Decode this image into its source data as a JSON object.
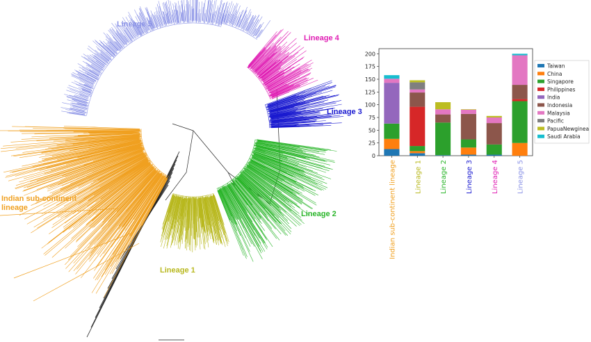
{
  "tree": {
    "lineages": [
      {
        "key": "l5",
        "name": "Lineage 5",
        "color": "#8b93e6"
      },
      {
        "key": "l4",
        "name": "Lineage 4",
        "color": "#e01fb4"
      },
      {
        "key": "l3",
        "name": "Lineage 3",
        "color": "#1a1ad0"
      },
      {
        "key": "l2",
        "name": "Lineage 2",
        "color": "#2ab52a"
      },
      {
        "key": "l1",
        "name": "Lineage 1",
        "color": "#b8b81e"
      },
      {
        "key": "isc",
        "name": "Indian sub-continent lineage",
        "color": "#f0a020"
      }
    ],
    "isc_label_line1": "Indian sub-continent",
    "isc_label_line2": "lineage"
  },
  "chart_data": {
    "type": "bar",
    "stacked": true,
    "categories": [
      "Indian sub-continent lineage",
      "Lineage 1",
      "Lineage 2",
      "Lineage 3",
      "Lineage 4",
      "Lineage 5"
    ],
    "category_colors": [
      "#f0a020",
      "#b8b81e",
      "#2ab52a",
      "#1a1ad0",
      "#e01fb4",
      "#8b93e6"
    ],
    "ylim": [
      0,
      210
    ],
    "yticks": [
      0,
      25,
      50,
      75,
      100,
      125,
      150,
      175,
      200
    ],
    "legend_position": "right",
    "series": [
      {
        "name": "Taiwan",
        "color": "#1f77b4",
        "values": [
          13,
          5,
          1,
          2,
          2,
          0
        ]
      },
      {
        "name": "China",
        "color": "#ff7f0e",
        "values": [
          20,
          4,
          0,
          14,
          0,
          25
        ]
      },
      {
        "name": "Singapore",
        "color": "#2ca02c",
        "values": [
          30,
          10,
          64,
          16,
          20,
          82
        ]
      },
      {
        "name": "Philippines",
        "color": "#d62728",
        "values": [
          0,
          77,
          0,
          0,
          0,
          4
        ]
      },
      {
        "name": "India",
        "color": "#9467bd",
        "values": [
          80,
          0,
          0,
          0,
          0,
          0
        ]
      },
      {
        "name": "Indonesia",
        "color": "#8c564b",
        "values": [
          0,
          28,
          16,
          50,
          42,
          28
        ]
      },
      {
        "name": "Malaysia",
        "color": "#e377c2",
        "values": [
          8,
          6,
          10,
          8,
          11,
          58
        ]
      },
      {
        "name": "Pacific",
        "color": "#7f7f7f",
        "values": [
          0,
          14,
          0,
          0,
          0,
          0
        ]
      },
      {
        "name": "PapuaNewginea",
        "color": "#bcbd22",
        "values": [
          0,
          4,
          14,
          1,
          3,
          0
        ]
      },
      {
        "name": "Saudi Arabia",
        "color": "#17becf",
        "values": [
          7,
          0,
          0,
          0,
          0,
          3
        ]
      }
    ]
  }
}
